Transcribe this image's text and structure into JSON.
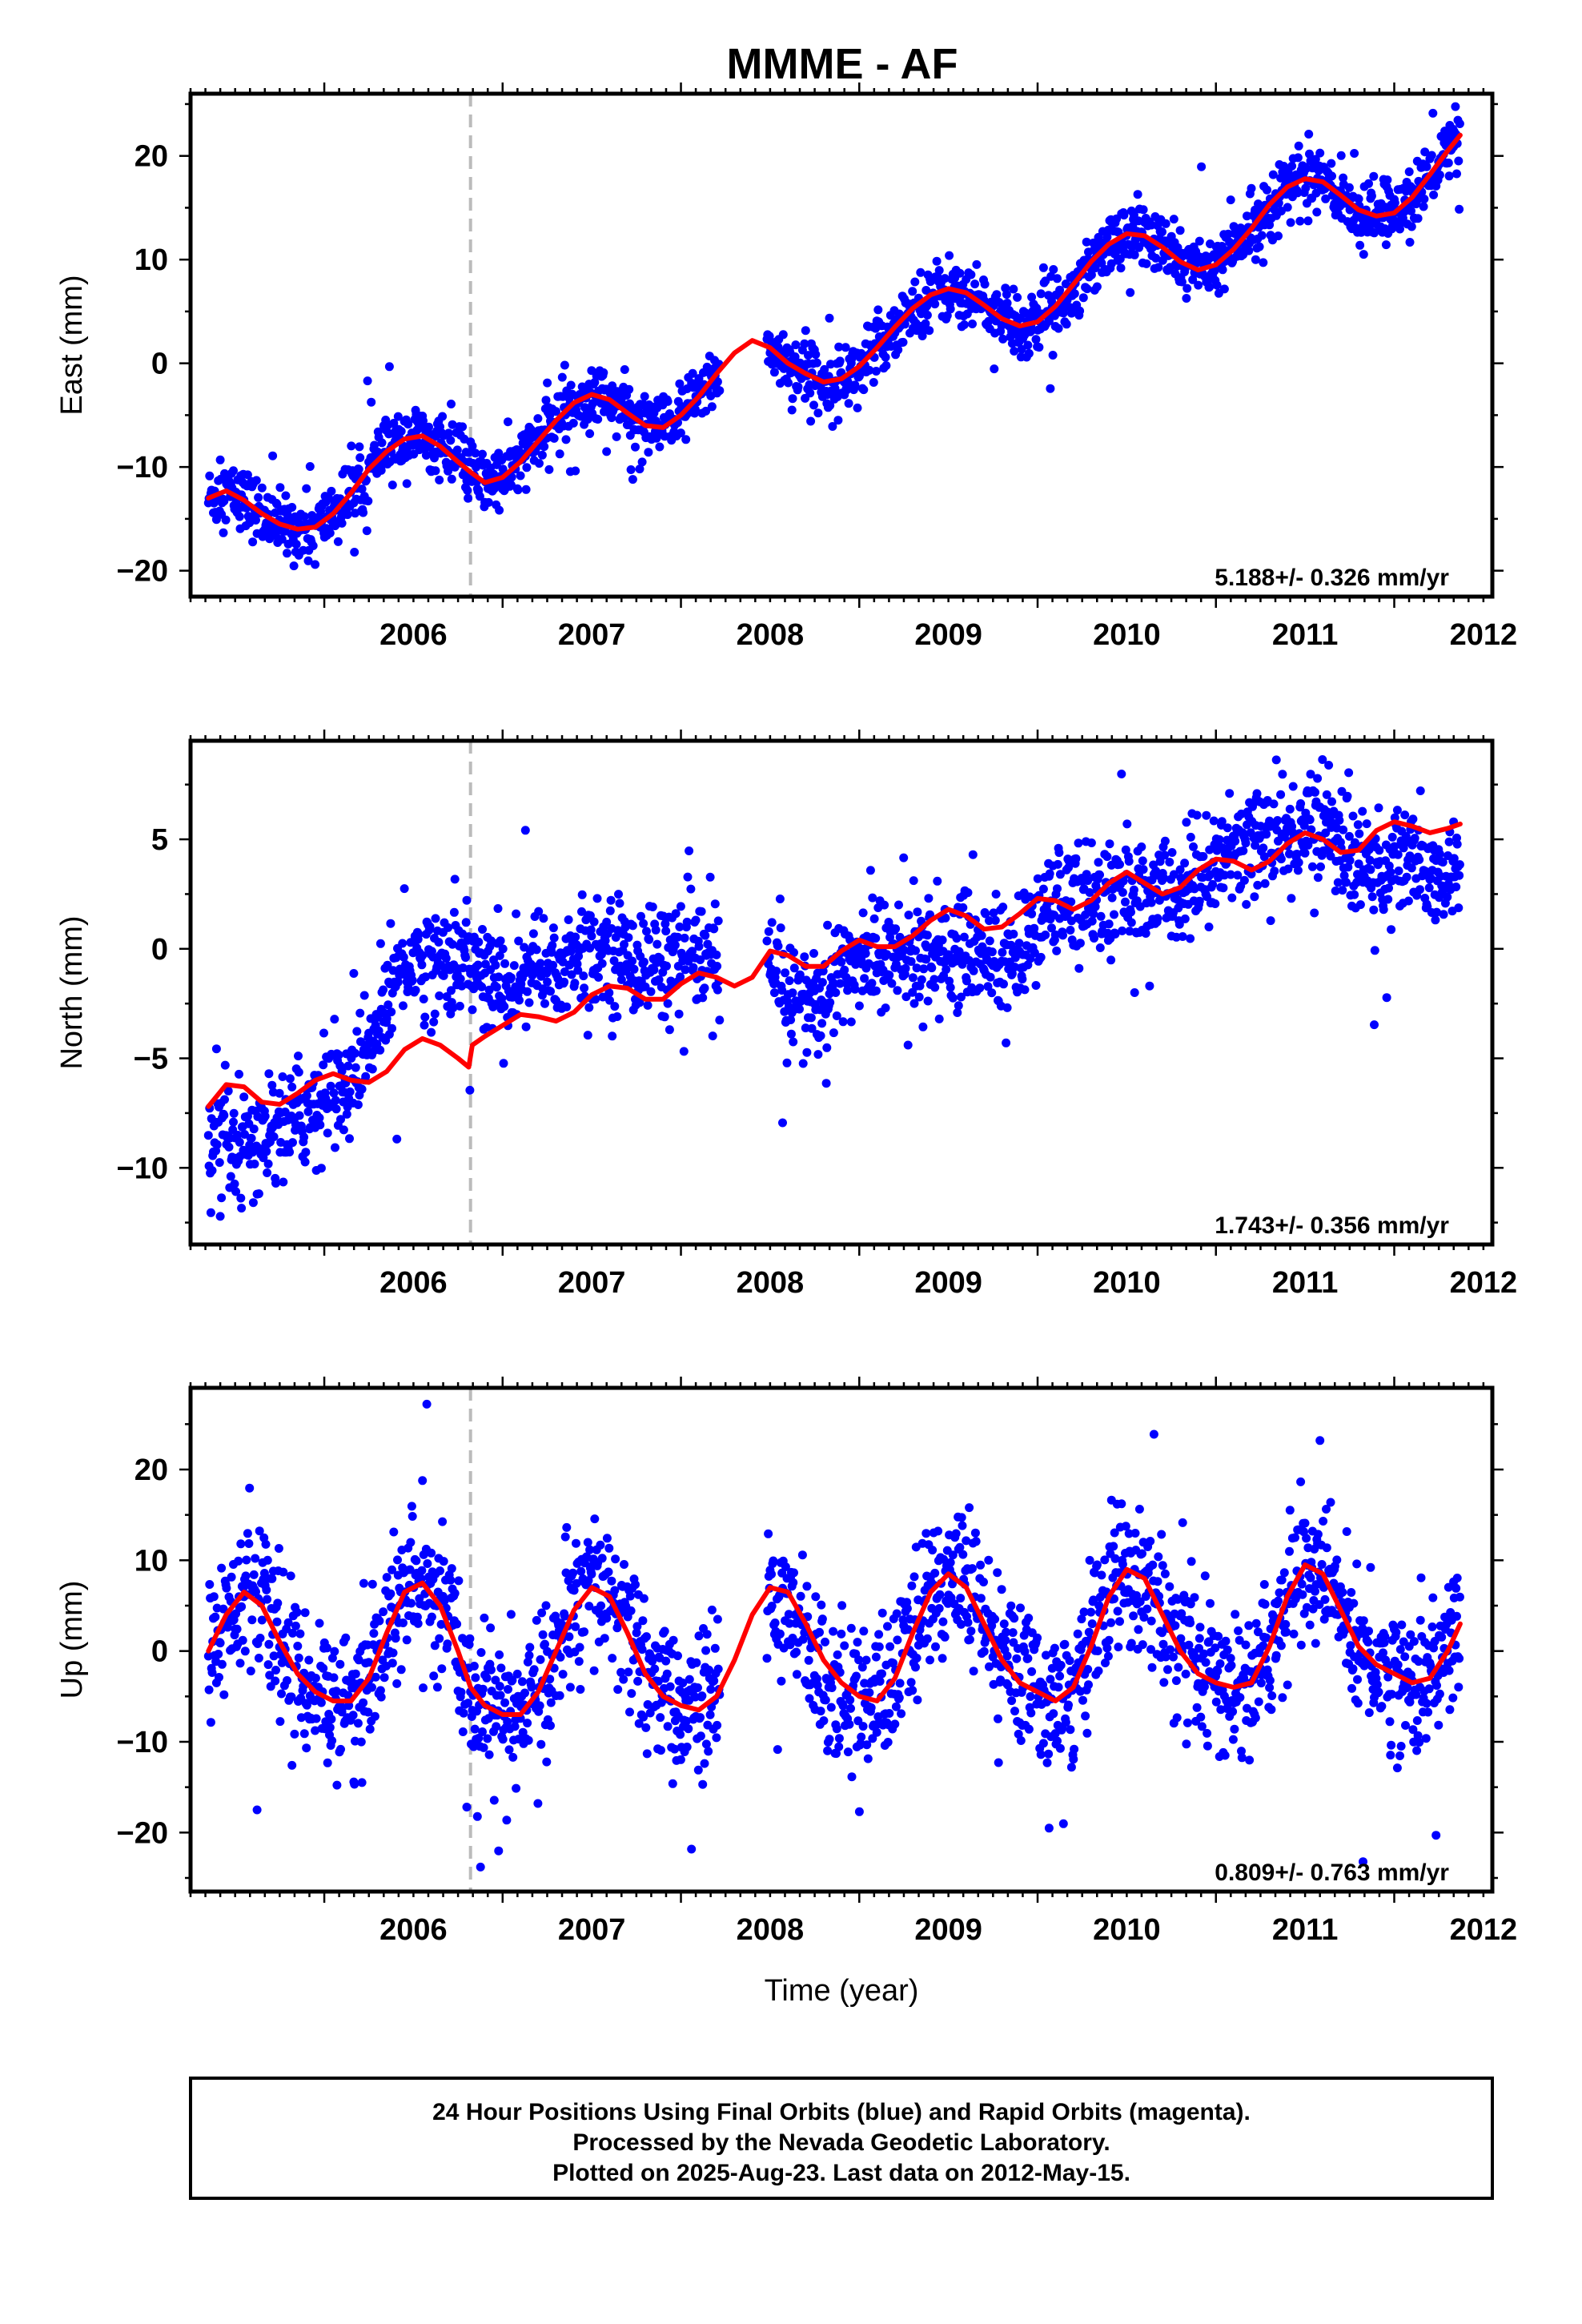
{
  "title": "MMME - AF",
  "footer": {
    "line1": "24 Hour Positions Using Final Orbits (blue) and Rapid Orbits (magenta).",
    "line2": "Processed by the Nevada Geodetic Laboratory.",
    "line3": "Plotted on 2025-Aug-23. Last data on 2012-May-15."
  },
  "chart_data": [
    {
      "type": "scatter",
      "component": "east",
      "ylabel": "East (mm)",
      "xlabel": "",
      "xlim": [
        2005.25,
        2012.55
      ],
      "ylim": [
        -22.5,
        26.0
      ],
      "xticks": [
        2006,
        2007,
        2008,
        2009,
        2010,
        2011,
        2012
      ],
      "yticks": [
        -20,
        -10,
        0,
        10,
        20
      ],
      "rate_label": "5.188+/- 0.326 mm/yr",
      "equipment_change_epoch": 2006.82,
      "data_gap": [
        2008.22,
        2008.48
      ],
      "series": [
        {
          "name": "",
          "role": "daily positions",
          "color": "#0000ff",
          "x": [
            2005.35,
            2005.45,
            2005.55,
            2005.65,
            2005.75,
            2005.85,
            2005.95,
            2006.05,
            2006.15,
            2006.25,
            2006.35,
            2006.45,
            2006.55,
            2006.65,
            2006.75,
            2006.82,
            2006.9,
            2007.0,
            2007.1,
            2007.2,
            2007.3,
            2007.4,
            2007.5,
            2007.6,
            2007.7,
            2007.8,
            2007.9,
            2008.0,
            2008.1,
            2008.2,
            2008.5,
            2008.6,
            2008.7,
            2008.8,
            2008.9,
            2009.0,
            2009.1,
            2009.2,
            2009.3,
            2009.4,
            2009.5,
            2009.6,
            2009.7,
            2009.8,
            2009.9,
            2010.0,
            2010.1,
            2010.2,
            2010.3,
            2010.4,
            2010.5,
            2010.6,
            2010.7,
            2010.8,
            2010.9,
            2011.0,
            2011.1,
            2011.2,
            2011.3,
            2011.4,
            2011.5,
            2011.6,
            2011.7,
            2011.8,
            2011.9,
            2012.0,
            2012.1,
            2012.2,
            2012.3,
            2012.37
          ],
          "y": [
            -13.0,
            -12.3,
            -13.2,
            -14.5,
            -15.5,
            -16.0,
            -15.8,
            -14.5,
            -12.5,
            -10.2,
            -8.5,
            -7.3,
            -7.0,
            -8.0,
            -9.5,
            -10.5,
            -11.5,
            -11.0,
            -9.5,
            -7.5,
            -5.5,
            -3.8,
            -3.0,
            -3.5,
            -4.8,
            -6.0,
            -6.2,
            -5.0,
            -3.2,
            -1.0,
            1.5,
            0.0,
            -1.0,
            -1.8,
            -1.5,
            -0.3,
            1.5,
            3.5,
            5.3,
            6.6,
            7.2,
            6.8,
            5.6,
            4.3,
            3.6,
            4.0,
            5.5,
            7.6,
            9.8,
            11.5,
            12.5,
            12.3,
            11.2,
            9.8,
            9.0,
            9.5,
            11.0,
            13.0,
            15.3,
            17.0,
            17.8,
            17.5,
            16.2,
            14.8,
            14.2,
            14.5,
            16.0,
            18.2,
            20.5,
            22.0
          ],
          "scatter_mm": 1.5
        },
        {
          "name": "",
          "role": "model fit",
          "color": "#ff0000",
          "x": [
            2005.35,
            2005.45,
            2005.55,
            2005.65,
            2005.75,
            2005.85,
            2005.95,
            2006.05,
            2006.15,
            2006.25,
            2006.35,
            2006.45,
            2006.55,
            2006.65,
            2006.75,
            2006.82,
            2006.9,
            2007.0,
            2007.1,
            2007.2,
            2007.3,
            2007.4,
            2007.5,
            2007.6,
            2007.7,
            2007.8,
            2007.9,
            2008.0,
            2008.1,
            2008.2,
            2008.3,
            2008.4,
            2008.5,
            2008.6,
            2008.7,
            2008.8,
            2008.9,
            2009.0,
            2009.1,
            2009.2,
            2009.3,
            2009.4,
            2009.5,
            2009.6,
            2009.7,
            2009.8,
            2009.9,
            2010.0,
            2010.1,
            2010.2,
            2010.3,
            2010.4,
            2010.5,
            2010.6,
            2010.7,
            2010.8,
            2010.9,
            2011.0,
            2011.1,
            2011.2,
            2011.3,
            2011.4,
            2011.5,
            2011.6,
            2011.7,
            2011.8,
            2011.9,
            2012.0,
            2012.1,
            2012.2,
            2012.3,
            2012.37
          ],
          "y": [
            -13.0,
            -12.3,
            -13.2,
            -14.5,
            -15.5,
            -16.0,
            -15.8,
            -14.5,
            -12.5,
            -10.2,
            -8.5,
            -7.3,
            -7.0,
            -8.0,
            -9.5,
            -10.5,
            -11.5,
            -11.0,
            -9.5,
            -7.5,
            -5.5,
            -3.8,
            -3.0,
            -3.5,
            -4.8,
            -6.0,
            -6.2,
            -5.0,
            -3.2,
            -1.0,
            1.0,
            2.2,
            1.5,
            0.0,
            -1.0,
            -1.8,
            -1.5,
            -0.3,
            1.5,
            3.5,
            5.3,
            6.6,
            7.2,
            6.8,
            5.6,
            4.3,
            3.6,
            4.0,
            5.5,
            7.6,
            9.8,
            11.5,
            12.5,
            12.3,
            11.2,
            9.8,
            9.0,
            9.5,
            11.0,
            13.0,
            15.3,
            17.0,
            17.8,
            17.5,
            16.2,
            14.8,
            14.2,
            14.5,
            16.0,
            18.2,
            20.5,
            22.0
          ]
        }
      ]
    },
    {
      "type": "scatter",
      "component": "north",
      "ylabel": "North (mm)",
      "xlabel": "",
      "xlim": [
        2005.25,
        2012.55
      ],
      "ylim": [
        -13.5,
        9.5
      ],
      "xticks": [
        2006,
        2007,
        2008,
        2009,
        2010,
        2011,
        2012
      ],
      "yticks": [
        -10,
        -5,
        0,
        5
      ],
      "rate_label": "1.743+/- 0.356 mm/yr",
      "equipment_change_epoch": 2006.82,
      "data_gap": [
        2008.22,
        2008.48
      ],
      "series": [
        {
          "name": "",
          "role": "daily positions",
          "color": "#0000ff",
          "x": [
            2005.35,
            2005.45,
            2005.55,
            2005.65,
            2005.75,
            2005.85,
            2005.95,
            2006.05,
            2006.15,
            2006.25,
            2006.35,
            2006.45,
            2006.55,
            2006.65,
            2006.75,
            2006.82,
            2006.9,
            2007.0,
            2007.1,
            2007.2,
            2007.3,
            2007.4,
            2007.5,
            2007.6,
            2007.7,
            2007.8,
            2007.9,
            2008.0,
            2008.1,
            2008.2,
            2008.5,
            2008.6,
            2008.7,
            2008.8,
            2008.9,
            2009.0,
            2009.1,
            2009.2,
            2009.3,
            2009.4,
            2009.5,
            2009.6,
            2009.7,
            2009.8,
            2009.9,
            2010.0,
            2010.1,
            2010.2,
            2010.3,
            2010.4,
            2010.5,
            2010.6,
            2010.7,
            2010.8,
            2010.9,
            2011.0,
            2011.1,
            2011.2,
            2011.3,
            2011.4,
            2011.5,
            2011.6,
            2011.7,
            2011.8,
            2011.9,
            2012.0,
            2012.1,
            2012.2,
            2012.3,
            2012.37
          ],
          "y": [
            -9.5,
            -9.0,
            -9.5,
            -8.5,
            -8.0,
            -7.5,
            -7.0,
            -6.5,
            -6.0,
            -5.0,
            -2.0,
            -0.5,
            -0.5,
            -0.5,
            -0.5,
            -0.5,
            -1.5,
            -1.5,
            -1.5,
            -1.0,
            -1.0,
            -0.5,
            0.0,
            0.0,
            -0.5,
            -0.5,
            -0.5,
            -0.5,
            -0.5,
            -0.5,
            -1.0,
            -2.0,
            -2.5,
            -2.5,
            -1.0,
            -0.5,
            0.0,
            -0.5,
            -0.5,
            0.0,
            0.0,
            0.0,
            0.0,
            -0.5,
            -0.5,
            1.0,
            2.0,
            2.5,
            2.5,
            2.0,
            2.5,
            2.5,
            2.5,
            2.5,
            3.0,
            4.0,
            4.5,
            5.0,
            5.0,
            5.0,
            5.5,
            6.0,
            5.0,
            4.0,
            3.5,
            3.5,
            4.5,
            4.0,
            3.0,
            3.5
          ],
          "scatter_mm": 1.3
        },
        {
          "name": "",
          "role": "model fit",
          "color": "#ff0000",
          "x": [
            2005.35,
            2005.45,
            2005.55,
            2005.65,
            2005.75,
            2005.85,
            2005.95,
            2006.05,
            2006.15,
            2006.25,
            2006.35,
            2006.45,
            2006.55,
            2006.65,
            2006.75,
            2006.81,
            2006.83,
            2006.9,
            2007.0,
            2007.1,
            2007.2,
            2007.3,
            2007.4,
            2007.5,
            2007.6,
            2007.7,
            2007.8,
            2007.9,
            2008.0,
            2008.1,
            2008.2,
            2008.3,
            2008.4,
            2008.5,
            2008.6,
            2008.7,
            2008.8,
            2008.9,
            2009.0,
            2009.1,
            2009.2,
            2009.3,
            2009.4,
            2009.5,
            2009.6,
            2009.7,
            2009.8,
            2009.9,
            2010.0,
            2010.1,
            2010.2,
            2010.3,
            2010.4,
            2010.5,
            2010.6,
            2010.7,
            2010.8,
            2010.9,
            2011.0,
            2011.1,
            2011.2,
            2011.3,
            2011.4,
            2011.5,
            2011.6,
            2011.7,
            2011.8,
            2011.9,
            2012.0,
            2012.1,
            2012.2,
            2012.3,
            2012.37
          ],
          "y": [
            -7.2,
            -6.2,
            -6.3,
            -7.0,
            -7.1,
            -6.6,
            -6.0,
            -5.7,
            -6.0,
            -6.1,
            -5.6,
            -4.6,
            -4.1,
            -4.4,
            -5.0,
            -5.4,
            -4.4,
            -4.0,
            -3.5,
            -3.0,
            -3.1,
            -3.3,
            -2.9,
            -2.1,
            -1.7,
            -1.8,
            -2.3,
            -2.3,
            -1.6,
            -1.1,
            -1.3,
            -1.7,
            -1.3,
            -0.1,
            -0.3,
            -0.8,
            -0.8,
            -0.1,
            0.4,
            0.1,
            0.1,
            0.6,
            1.3,
            1.8,
            1.5,
            0.9,
            1.0,
            1.6,
            2.3,
            2.2,
            1.8,
            2.2,
            3.0,
            3.5,
            3.0,
            2.5,
            2.8,
            3.6,
            4.1,
            4.0,
            3.6,
            4.0,
            4.8,
            5.3,
            5.0,
            4.4,
            4.5,
            5.4,
            5.8,
            5.6,
            5.3,
            5.5,
            5.7
          ]
        }
      ]
    },
    {
      "type": "scatter",
      "component": "up",
      "ylabel": "Up (mm)",
      "xlabel": "Time (year)",
      "xlim": [
        2005.25,
        2012.55
      ],
      "ylim": [
        -26.5,
        29.0
      ],
      "xticks": [
        2006,
        2007,
        2008,
        2009,
        2010,
        2011,
        2012
      ],
      "yticks": [
        -20,
        -10,
        0,
        10,
        20
      ],
      "rate_label": "0.809+/- 0.763 mm/yr",
      "equipment_change_epoch": 2006.82,
      "data_gap": [
        2008.22,
        2008.48
      ],
      "series": [
        {
          "name": "",
          "role": "daily positions",
          "color": "#0000ff",
          "x": [
            2005.35,
            2005.45,
            2005.55,
            2005.65,
            2005.75,
            2005.85,
            2005.95,
            2006.05,
            2006.15,
            2006.25,
            2006.35,
            2006.45,
            2006.55,
            2006.65,
            2006.75,
            2006.82,
            2006.9,
            2007.0,
            2007.1,
            2007.2,
            2007.3,
            2007.4,
            2007.5,
            2007.6,
            2007.7,
            2007.8,
            2007.9,
            2008.0,
            2008.1,
            2008.2,
            2008.5,
            2008.6,
            2008.7,
            2008.8,
            2008.9,
            2009.0,
            2009.1,
            2009.2,
            2009.3,
            2009.4,
            2009.5,
            2009.6,
            2009.7,
            2009.8,
            2009.9,
            2010.0,
            2010.1,
            2010.2,
            2010.3,
            2010.4,
            2010.5,
            2010.6,
            2010.7,
            2010.8,
            2010.9,
            2011.0,
            2011.1,
            2011.2,
            2011.3,
            2011.4,
            2011.5,
            2011.6,
            2011.7,
            2011.8,
            2011.9,
            2012.0,
            2012.1,
            2012.2,
            2012.3,
            2012.37
          ],
          "y": [
            0.0,
            4.0,
            6.5,
            5.0,
            1.0,
            -2.5,
            -4.5,
            -5.5,
            -5.5,
            -3.0,
            2.0,
            6.5,
            7.5,
            5.0,
            0.0,
            -4.0,
            -6.0,
            -7.0,
            -7.0,
            -4.5,
            0.0,
            4.5,
            7.0,
            6.0,
            2.0,
            -2.5,
            -5.0,
            -6.0,
            -6.5,
            -5.0,
            6.5,
            5.0,
            1.0,
            -2.5,
            -4.5,
            -5.5,
            -5.5,
            -3.0,
            2.0,
            6.5,
            8.5,
            7.0,
            3.0,
            -1.0,
            -3.5,
            -4.5,
            -5.5,
            -4.0,
            0.5,
            6.0,
            9.0,
            8.0,
            4.0,
            0.0,
            -2.5,
            -3.5,
            -4.0,
            -3.5,
            0.5,
            6.0,
            9.5,
            8.5,
            4.5,
            0.5,
            -1.5,
            -2.5,
            -3.5,
            -3.0,
            0.0,
            3.0
          ],
          "scatter_mm": 4.0
        },
        {
          "name": "",
          "role": "model fit",
          "color": "#ff0000",
          "x": [
            2005.35,
            2005.45,
            2005.55,
            2005.65,
            2005.75,
            2005.85,
            2005.95,
            2006.05,
            2006.15,
            2006.25,
            2006.35,
            2006.45,
            2006.55,
            2006.65,
            2006.75,
            2006.82,
            2006.9,
            2007.0,
            2007.1,
            2007.2,
            2007.3,
            2007.4,
            2007.5,
            2007.6,
            2007.7,
            2007.8,
            2007.9,
            2008.0,
            2008.1,
            2008.2,
            2008.3,
            2008.4,
            2008.5,
            2008.6,
            2008.7,
            2008.8,
            2008.9,
            2009.0,
            2009.1,
            2009.2,
            2009.3,
            2009.4,
            2009.5,
            2009.6,
            2009.7,
            2009.8,
            2009.9,
            2010.0,
            2010.1,
            2010.2,
            2010.3,
            2010.4,
            2010.5,
            2010.6,
            2010.7,
            2010.8,
            2010.9,
            2011.0,
            2011.1,
            2011.2,
            2011.3,
            2011.4,
            2011.5,
            2011.6,
            2011.7,
            2011.8,
            2011.9,
            2012.0,
            2012.1,
            2012.2,
            2012.3,
            2012.37
          ],
          "y": [
            0.0,
            4.0,
            6.5,
            5.0,
            1.0,
            -2.5,
            -4.5,
            -5.5,
            -5.5,
            -3.0,
            2.0,
            6.5,
            7.5,
            5.0,
            0.0,
            -4.0,
            -6.0,
            -7.0,
            -7.0,
            -4.5,
            0.0,
            4.5,
            7.0,
            6.0,
            2.0,
            -2.5,
            -5.0,
            -6.0,
            -6.5,
            -5.0,
            -1.0,
            4.0,
            7.0,
            6.5,
            3.0,
            -1.0,
            -3.5,
            -5.0,
            -5.5,
            -3.0,
            2.0,
            6.5,
            8.5,
            7.0,
            3.0,
            -1.0,
            -3.5,
            -4.5,
            -5.5,
            -4.0,
            0.5,
            6.0,
            9.0,
            8.0,
            4.0,
            0.0,
            -2.5,
            -3.5,
            -4.0,
            -3.5,
            0.5,
            6.0,
            9.5,
            8.5,
            4.5,
            0.5,
            -1.5,
            -2.5,
            -3.5,
            -3.0,
            0.0,
            3.0
          ]
        }
      ]
    }
  ]
}
